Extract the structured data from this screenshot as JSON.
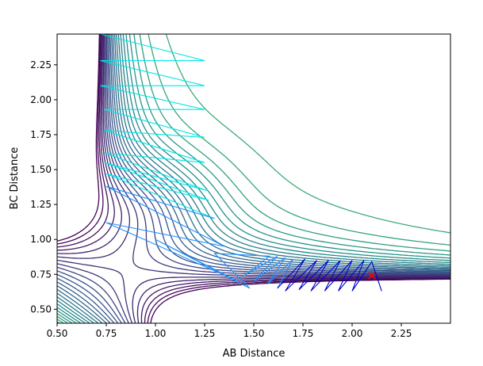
{
  "chart_data": {
    "type": "contour",
    "title": "",
    "xlabel": "AB Distance",
    "ylabel": "BC Distance",
    "xlim": [
      0.5,
      2.5
    ],
    "ylim": [
      0.4,
      2.47
    ],
    "xticks": [
      0.5,
      0.75,
      1.0,
      1.25,
      1.5,
      1.75,
      2.0,
      2.25
    ],
    "xtick_labels": [
      "0.50",
      "0.75",
      "1.00",
      "1.25",
      "1.50",
      "1.75",
      "2.00",
      "2.25"
    ],
    "yticks": [
      0.5,
      0.75,
      1.0,
      1.25,
      1.5,
      1.75,
      2.0,
      2.25
    ],
    "ytick_labels": [
      "0.50",
      "0.75",
      "1.00",
      "1.25",
      "1.50",
      "1.75",
      "2.00",
      "2.25"
    ],
    "grid": false,
    "colormap": "viridis",
    "surface": {
      "ridge_x": 0.75,
      "ridge_y": 0.75,
      "valley_x": 0.74,
      "valley_y": 0.74,
      "levels": 40
    },
    "trajectory": {
      "colors": [
        "#00e6e6",
        "#1e90ff",
        "#0000cd"
      ],
      "points": [
        [
          0.72,
          2.47
        ],
        [
          1.25,
          2.28
        ],
        [
          0.72,
          2.28
        ],
        [
          1.25,
          2.1
        ],
        [
          0.72,
          2.1
        ],
        [
          1.25,
          1.93
        ],
        [
          0.74,
          1.93
        ],
        [
          1.25,
          1.73
        ],
        [
          0.74,
          1.78
        ],
        [
          1.25,
          1.55
        ],
        [
          0.74,
          1.62
        ],
        [
          1.26,
          1.35
        ],
        [
          0.74,
          1.55
        ],
        [
          1.27,
          1.28
        ],
        [
          0.75,
          1.47
        ],
        [
          1.3,
          1.15
        ],
        [
          0.75,
          1.38
        ],
        [
          1.35,
          0.95
        ],
        [
          0.75,
          1.12
        ],
        [
          1.42,
          0.7
        ],
        [
          1.0,
          1.0
        ],
        [
          1.48,
          0.65
        ],
        [
          1.3,
          0.9
        ],
        [
          1.58,
          0.88
        ],
        [
          1.45,
          0.74
        ],
        [
          1.62,
          0.88
        ],
        [
          1.5,
          0.7
        ],
        [
          1.66,
          0.87
        ],
        [
          1.57,
          0.68
        ],
        [
          1.7,
          0.86
        ],
        [
          1.62,
          0.65
        ],
        [
          1.76,
          0.86
        ],
        [
          1.66,
          0.63
        ],
        [
          1.82,
          0.85
        ],
        [
          1.73,
          0.64
        ],
        [
          1.88,
          0.85
        ],
        [
          1.79,
          0.63
        ],
        [
          1.94,
          0.85
        ],
        [
          1.86,
          0.63
        ],
        [
          2.0,
          0.85
        ],
        [
          1.93,
          0.63
        ],
        [
          2.06,
          0.85
        ],
        [
          2.0,
          0.63
        ],
        [
          2.1,
          0.84
        ],
        [
          2.15,
          0.63
        ]
      ]
    },
    "marker": {
      "x": 2.1,
      "y": 0.74,
      "symbol": "x",
      "color": "#ff0000"
    }
  }
}
